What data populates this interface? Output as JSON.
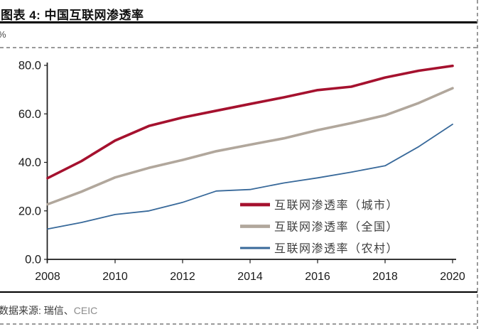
{
  "header": {
    "title": "图表 4: 中国互联网渗透率",
    "unit_label": "%"
  },
  "footer": {
    "source_label": "数据来源: 瑞信、",
    "source_secondary": "CEIC"
  },
  "colors": {
    "urban": "#A5112E",
    "national": "#B1A79C",
    "rural": "#38699A",
    "axis": "#1a1a1a",
    "tick_label": "#1a1a1a",
    "legend_text": "#3d3d3d",
    "dashed_border": "#9a9a9a"
  },
  "chart_data": {
    "type": "line",
    "title": "中国互联网渗透率",
    "unit": "%",
    "x": [
      2008,
      2009,
      2010,
      2011,
      2012,
      2013,
      2014,
      2015,
      2016,
      2017,
      2018,
      2019,
      2020
    ],
    "x_tick_labels": [
      "2008",
      "2010",
      "2012",
      "2014",
      "2016",
      "2018",
      "2020"
    ],
    "x_tick_years": [
      2008,
      2010,
      2012,
      2014,
      2016,
      2018,
      2020
    ],
    "ylim": [
      0,
      80
    ],
    "y_ticks": [
      0,
      20,
      40,
      60,
      80
    ],
    "y_tick_labels": [
      "0.0",
      "20.0",
      "40.0",
      "60.0",
      "80.0"
    ],
    "grid": false,
    "legend_position": "inside-lower-right",
    "series": [
      {
        "name": "互联网渗透率（城市）",
        "color": "#A5112E",
        "stroke_width": 3.6,
        "values": [
          33.5,
          40.5,
          49.0,
          55.0,
          58.5,
          61.3,
          64.1,
          66.8,
          69.8,
          71.2,
          75.0,
          77.8,
          79.8
        ]
      },
      {
        "name": "互联网渗透率（全国）",
        "color": "#B1A79C",
        "stroke_width": 3.6,
        "values": [
          22.7,
          27.9,
          33.8,
          37.7,
          41.0,
          44.6,
          47.3,
          49.9,
          53.3,
          56.2,
          59.4,
          64.5,
          70.6
        ]
      },
      {
        "name": "互联网渗透率（农村）",
        "color": "#38699A",
        "stroke_width": 1.8,
        "values": [
          12.5,
          15.2,
          18.5,
          20.0,
          23.5,
          28.2,
          28.8,
          31.5,
          33.6,
          36.0,
          38.6,
          46.5,
          55.7
        ]
      }
    ]
  }
}
